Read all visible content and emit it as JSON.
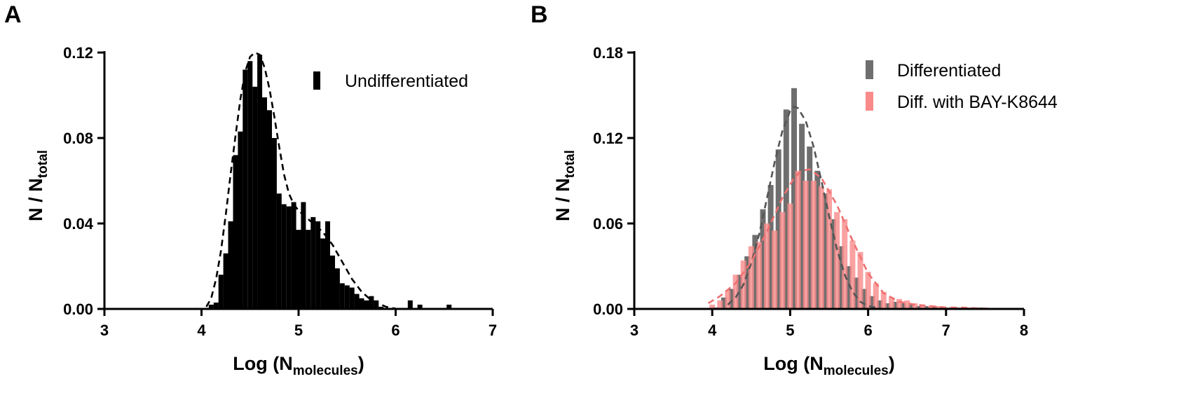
{
  "chart_data": [
    {
      "type": "bar",
      "panel_label": "A",
      "xlabel": {
        "main": "Log (N",
        "sub": "molecules",
        "close": ")"
      },
      "ylabel": {
        "main": "N / N",
        "sub": "total"
      },
      "xlim": [
        3,
        7
      ],
      "ylim": [
        0,
        0.12
      ],
      "xticks": [
        3,
        4,
        5,
        6,
        7
      ],
      "xtick_labels": [
        "3",
        "4",
        "5",
        "6",
        "7"
      ],
      "yticks": [
        0,
        0.04,
        0.08,
        0.12
      ],
      "ytick_labels": [
        "0.00",
        "0.04",
        "0.08",
        "0.12"
      ],
      "grid": false,
      "legend_position": "top-right",
      "series": [
        {
          "name": "Undifferentiated",
          "color": "#000000",
          "x": [
            4.1,
            4.15,
            4.2,
            4.25,
            4.3,
            4.35,
            4.4,
            4.45,
            4.5,
            4.55,
            4.6,
            4.65,
            4.7,
            4.75,
            4.8,
            4.85,
            4.9,
            4.95,
            5.0,
            5.05,
            5.1,
            5.15,
            5.2,
            5.25,
            5.3,
            5.35,
            5.4,
            5.45,
            5.5,
            5.55,
            5.6,
            5.65,
            5.7,
            5.75,
            5.8,
            5.85,
            6.15,
            6.25,
            6.55
          ],
          "values": [
            0.002,
            0.003,
            0.016,
            0.026,
            0.041,
            0.072,
            0.083,
            0.112,
            0.116,
            0.104,
            0.119,
            0.099,
            0.093,
            0.08,
            0.054,
            0.049,
            0.048,
            0.05,
            0.037,
            0.05,
            0.037,
            0.043,
            0.041,
            0.033,
            0.041,
            0.025,
            0.019,
            0.012,
            0.011,
            0.01,
            0.007,
            0.005,
            0.004,
            0.006,
            0.004,
            0.001,
            0.004,
            0.002,
            0.002
          ]
        }
      ],
      "fit_curves": [
        {
          "color": "#000000",
          "x": [
            4.05,
            4.1,
            4.15,
            4.2,
            4.25,
            4.3,
            4.35,
            4.4,
            4.45,
            4.5,
            4.55,
            4.6,
            4.65,
            4.7,
            4.75,
            4.8,
            4.85,
            4.9,
            4.95,
            5.0,
            5.05,
            5.1,
            5.15,
            5.2,
            5.25,
            5.3,
            5.35,
            5.4,
            5.45,
            5.5,
            5.55,
            5.6,
            5.65,
            5.7,
            5.75,
            5.8,
            5.85,
            5.9,
            5.95,
            6.0
          ],
          "y": [
            0.001,
            0.005,
            0.014,
            0.027,
            0.044,
            0.063,
            0.081,
            0.098,
            0.111,
            0.118,
            0.12,
            0.119,
            0.113,
            0.103,
            0.09,
            0.076,
            0.063,
            0.054,
            0.049,
            0.046,
            0.044,
            0.042,
            0.04,
            0.038,
            0.036,
            0.033,
            0.03,
            0.026,
            0.022,
            0.018,
            0.014,
            0.011,
            0.008,
            0.006,
            0.004,
            0.003,
            0.002,
            0.001,
            0.0005,
            0.0002
          ]
        }
      ]
    },
    {
      "type": "bar",
      "panel_label": "B",
      "xlabel": {
        "main": "Log (N",
        "sub": "molecules",
        "close": ")"
      },
      "ylabel": {
        "main": "N / N",
        "sub": "total"
      },
      "xlim": [
        3,
        8
      ],
      "ylim": [
        0,
        0.18
      ],
      "xticks": [
        3,
        4,
        5,
        6,
        7,
        8
      ],
      "xtick_labels": [
        "3",
        "4",
        "5",
        "6",
        "7",
        "8"
      ],
      "yticks": [
        0,
        0.06,
        0.12,
        0.18
      ],
      "ytick_labels": [
        "0.00",
        "0.06",
        "0.12",
        "0.18"
      ],
      "grid": false,
      "legend_position": "top-right",
      "series": [
        {
          "name": "Differentiated",
          "color": "#6e6e6e",
          "x": [
            4.05,
            4.15,
            4.25,
            4.35,
            4.45,
            4.55,
            4.65,
            4.75,
            4.85,
            4.95,
            5.05,
            5.15,
            5.25,
            5.35,
            5.45,
            5.55,
            5.65,
            5.75,
            5.85,
            5.95,
            6.05,
            6.15,
            6.25,
            6.35,
            6.45,
            6.55,
            6.65,
            6.75,
            6.85,
            6.95,
            7.05,
            7.15,
            7.25,
            7.35,
            7.45,
            7.55
          ],
          "values": [
            0.001,
            0.008,
            0.014,
            0.024,
            0.037,
            0.052,
            0.07,
            0.087,
            0.112,
            0.14,
            0.155,
            0.13,
            0.114,
            0.097,
            0.081,
            0.063,
            0.044,
            0.03,
            0.022,
            0.014,
            0.009,
            0.006,
            0.004,
            0.005,
            0.004,
            0.003,
            0.002,
            0.002,
            0.002,
            0.001,
            0.001,
            0.001,
            0.001,
            0.001,
            0.001,
            0.0005
          ]
        },
        {
          "name": "Diff. with BAY-K8644",
          "color": "#f98a8a",
          "x": [
            4.0,
            4.1,
            4.2,
            4.3,
            4.4,
            4.5,
            4.6,
            4.7,
            4.8,
            4.9,
            5.0,
            5.1,
            5.2,
            5.3,
            5.4,
            5.5,
            5.6,
            5.7,
            5.8,
            5.9,
            6.0,
            6.1,
            6.2,
            6.3,
            6.4,
            6.5,
            6.6,
            6.7,
            6.8,
            6.9,
            7.0,
            7.1,
            7.2,
            7.3,
            7.4,
            7.5
          ],
          "values": [
            0.003,
            0.006,
            0.013,
            0.024,
            0.034,
            0.044,
            0.047,
            0.06,
            0.055,
            0.068,
            0.074,
            0.097,
            0.09,
            0.09,
            0.086,
            0.084,
            0.068,
            0.063,
            0.048,
            0.04,
            0.026,
            0.018,
            0.012,
            0.008,
            0.007,
            0.006,
            0.004,
            0.003,
            0.002,
            0.002,
            0.001,
            0.001,
            0.001,
            0.001,
            0.001,
            0.0005
          ]
        }
      ],
      "fit_curves": [
        {
          "color": "#555555",
          "x": [
            4.2,
            4.3,
            4.4,
            4.5,
            4.6,
            4.7,
            4.8,
            4.9,
            5.0,
            5.05,
            5.1,
            5.2,
            5.3,
            5.4,
            5.5,
            5.6,
            5.7,
            5.8,
            5.9,
            6.0,
            6.1
          ],
          "y": [
            0.003,
            0.008,
            0.017,
            0.032,
            0.052,
            0.077,
            0.103,
            0.125,
            0.139,
            0.142,
            0.141,
            0.132,
            0.114,
            0.09,
            0.065,
            0.042,
            0.024,
            0.012,
            0.005,
            0.002,
            0.001
          ]
        },
        {
          "color": "#f07070",
          "x": [
            3.95,
            4.1,
            4.3,
            4.5,
            4.7,
            4.9,
            5.05,
            5.15,
            5.25,
            5.4,
            5.6,
            5.8,
            6.0,
            6.2,
            6.4,
            6.6,
            6.8,
            7.0,
            7.2,
            7.4,
            7.55
          ],
          "y": [
            0.004,
            0.009,
            0.018,
            0.033,
            0.054,
            0.078,
            0.092,
            0.097,
            0.098,
            0.092,
            0.073,
            0.048,
            0.025,
            0.011,
            0.005,
            0.003,
            0.002,
            0.001,
            0.001,
            0.0005,
            0.0002
          ]
        }
      ]
    }
  ]
}
